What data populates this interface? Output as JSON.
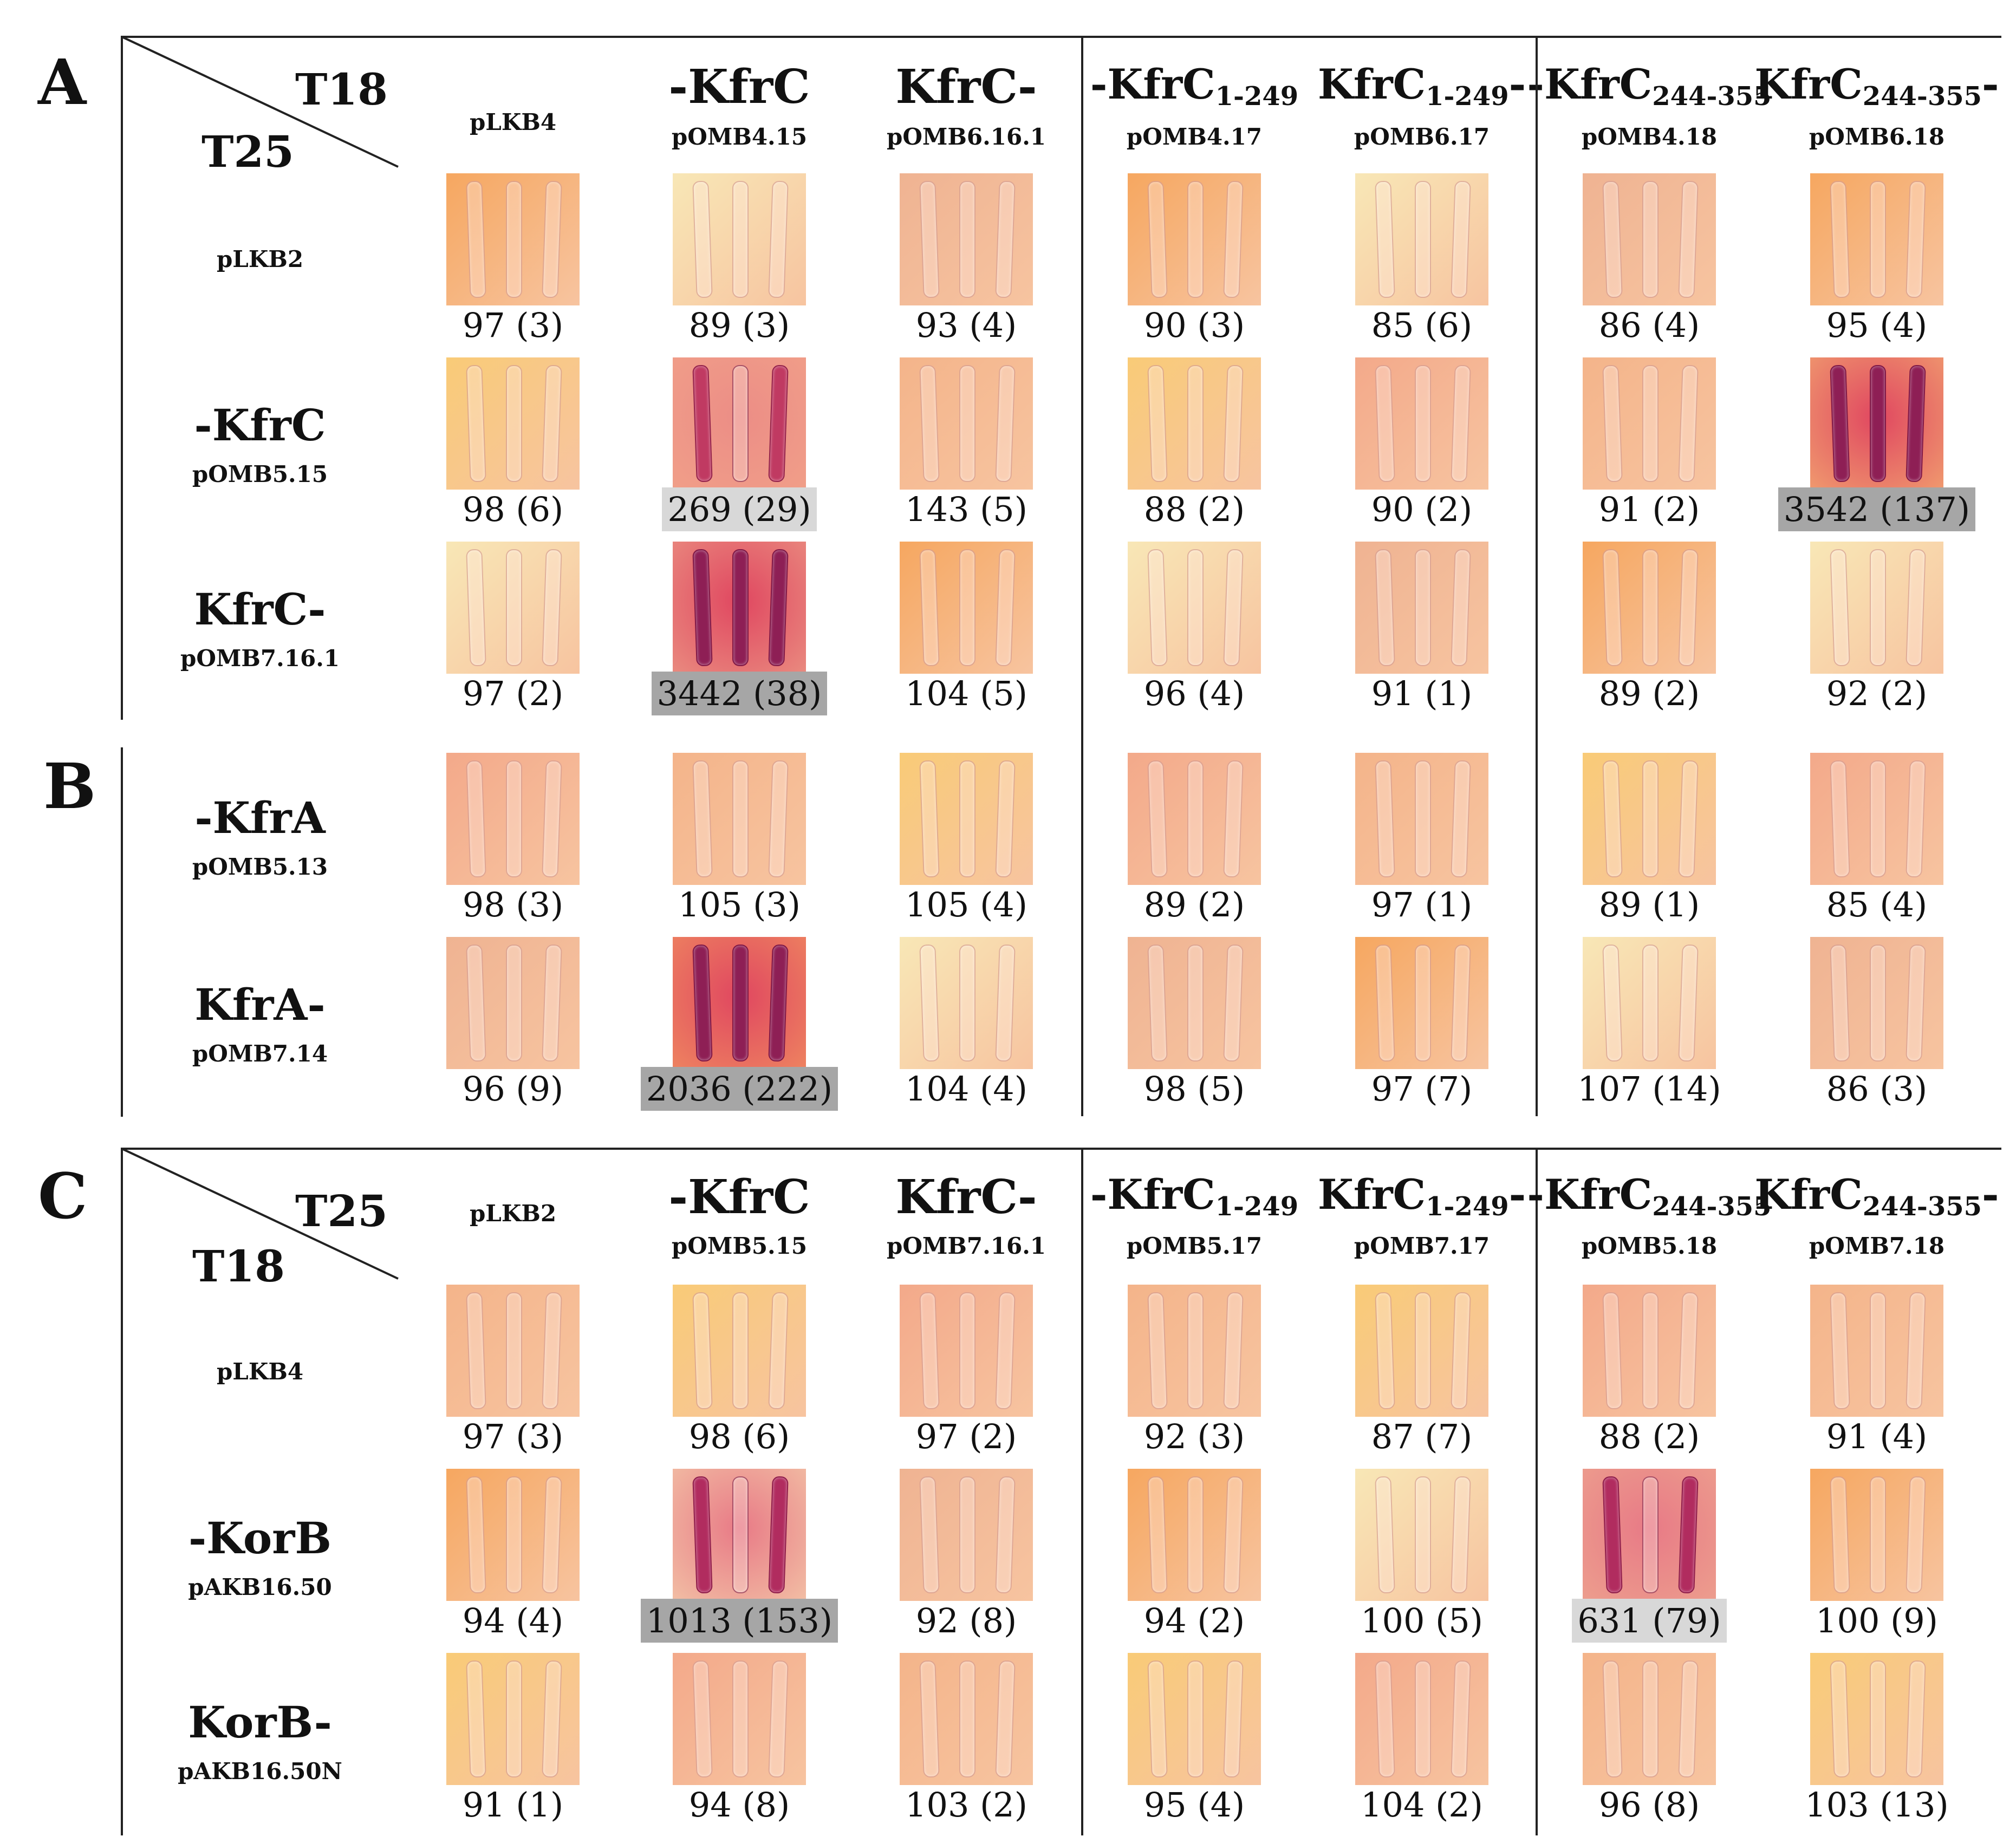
{
  "panels": {
    "A": {
      "letter": "A",
      "corner_top": "T18",
      "corner_bottom": "T25",
      "columns": [
        {
          "main": "",
          "sub_label": "",
          "label": "pLKB4"
        },
        {
          "main": "-KfrC",
          "sub_label": "",
          "label": "pOMB4.15"
        },
        {
          "main": "KfrC-",
          "sub_label": "",
          "label": "pOMB6.16.1"
        },
        {
          "main": "-KfrC",
          "sub_label": "1-249",
          "label": "pOMB4.17"
        },
        {
          "main": "KfrC",
          "sub_label": "1-249",
          "suffix": "-",
          "label": "pOMB6.17"
        },
        {
          "main": "-KfrC",
          "sub_label": "244-355",
          "label": "pOMB4.18"
        },
        {
          "main": "KfrC",
          "sub_label": "244-355",
          "suffix": "-",
          "label": "pOMB6.18"
        }
      ],
      "rows": [
        {
          "main": "",
          "label": "pLKB2",
          "values": [
            "97 (3)",
            "89 (3)",
            "93 (4)",
            "90 (3)",
            "85 (6)",
            "86 (4)",
            "95 (4)"
          ]
        },
        {
          "main": "-KfrC",
          "label": "pOMB5.15",
          "values": [
            "98 (6)",
            "269 (29)",
            "143 (5)",
            "88 (2)",
            "90 (2)",
            "91 (2)",
            "3542 (137)"
          ]
        },
        {
          "main": "KfrC-",
          "label": "pOMB7.16.1",
          "values": [
            "97 (2)",
            "3442 (38)",
            "104 (5)",
            "96 (4)",
            "91 (1)",
            "89 (2)",
            "92 (2)"
          ]
        }
      ]
    },
    "B": {
      "letter": "B",
      "rows": [
        {
          "main": "-KfrA",
          "label": "pOMB5.13",
          "values": [
            "98 (3)",
            "105 (3)",
            "105 (4)",
            "89 (2)",
            "97 (1)",
            "89 (1)",
            "85 (4)"
          ]
        },
        {
          "main": "KfrA-",
          "label": "pOMB7.14",
          "values": [
            "96 (9)",
            "2036 (222)",
            "104 (4)",
            "98 (5)",
            "97 (7)",
            "107 (14)",
            "86 (3)"
          ]
        }
      ]
    },
    "C": {
      "letter": "C",
      "corner_top": "T25",
      "corner_bottom": "T18",
      "columns": [
        {
          "main": "",
          "sub_label": "",
          "label": "pLKB2"
        },
        {
          "main": "-KfrC",
          "sub_label": "",
          "label": "pOMB5.15"
        },
        {
          "main": "KfrC-",
          "sub_label": "",
          "label": "pOMB7.16.1"
        },
        {
          "main": "-KfrC",
          "sub_label": "1-249",
          "label": "pOMB5.17"
        },
        {
          "main": "KfrC",
          "sub_label": "1-249",
          "suffix": "-",
          "label": "pOMB7.17"
        },
        {
          "main": "-KfrC",
          "sub_label": "244-355",
          "label": "pOMB5.18"
        },
        {
          "main": "KfrC",
          "sub_label": "244-355",
          "suffix": "-",
          "label": "pOMB7.18"
        }
      ],
      "rows": [
        {
          "main": "",
          "label": "pLKB4",
          "values": [
            "97 (3)",
            "98 (6)",
            "97 (2)",
            "92 (3)",
            "87 (7)",
            "88 (2)",
            "91 (4)"
          ]
        },
        {
          "main": "-KorB",
          "label": "pAKB16.50",
          "values": [
            "94 (4)",
            "1013 (153)",
            "92 (8)",
            "94 (2)",
            "100 (5)",
            "631 (79)",
            "100 (9)"
          ]
        },
        {
          "main": "KorB-",
          "label": "pAKB16.50N",
          "values": [
            "91 (1)",
            "94 (8)",
            "103 (2)",
            "95 (4)",
            "104 (2)",
            "96 (8)",
            "103 (13)"
          ]
        }
      ]
    }
  },
  "colors": {
    "peach": "#f4b48a",
    "orange": "#f6a760",
    "yellow": "#f9cb77",
    "red": "#e04760",
    "pale": "#f8e7b6",
    "highlight_light": "#d8d8d8",
    "highlight_dark": "#a6a6a6"
  }
}
